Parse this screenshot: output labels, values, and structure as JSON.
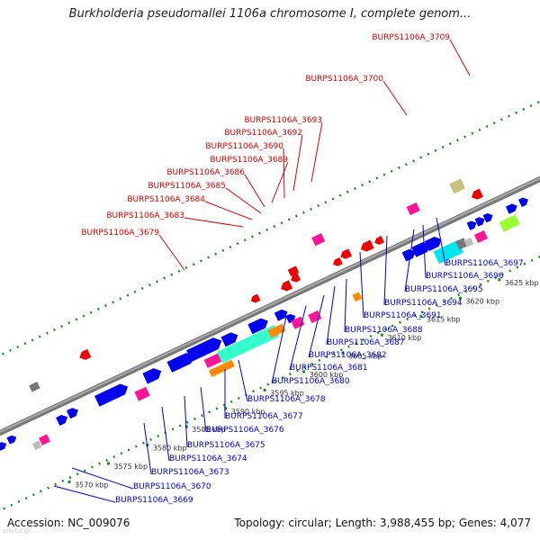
{
  "header": {
    "title": "Burkholderia pseudomallei 1106a chromosome I, complete genom..."
  },
  "footer": {
    "accession": "Accession: NC_009076",
    "summary": "Topology: circular; Length: 3,988,455 bp; Genes: 4,077",
    "watermark": "plot.cgi"
  },
  "colors": {
    "forward": "#0000ee",
    "reverse": "#ee0000",
    "magenta": "#ff1493",
    "aquamarine": "#33ffcc",
    "orange": "#ff8800",
    "cyan": "#00e5ee",
    "khaki": "#c8bf80",
    "gray": "#777777",
    "lime": "#99ff33",
    "label_reverse": "#dd0000",
    "label_forward": "#0000cc",
    "ticks": "#1a8c1a"
  },
  "scale": {
    "tick_labels": [
      "3570 kbp",
      "3575 kbp",
      "3580 kbp",
      "3585 kbp",
      "3590 kbp",
      "3595 kbp",
      "3600 kbp",
      "3605 kbp",
      "3610 kbp",
      "3615 kbp",
      "3620 kbp",
      "3625 kbp"
    ]
  },
  "labels_top": [
    "BURPS1106A_3709",
    "BURPS1106A_3700",
    "BURPS1106A_3693",
    "BURPS1106A_3692",
    "BURPS1106A_3690",
    "BURPS1106A_3689",
    "BURPS1106A_3686",
    "BURPS1106A_3685",
    "BURPS1106A_3684",
    "BURPS1106A_3683",
    "BURPS1106A_3679"
  ],
  "labels_bottom": [
    "BURPS1106A_3697",
    "BURPS1106A_3696",
    "BURPS1106A_3695",
    "BURPS1106A_3694",
    "BURPS1106A_3691",
    "BURPS1106A_3688",
    "BURPS1106A_3687",
    "BURPS1106A_3682",
    "BURPS1106A_3681",
    "BURPS1106A_3680",
    "BURPS1106A_3678",
    "BURPS1106A_3677",
    "BURPS1106A_3676",
    "BURPS1106A_3675",
    "BURPS1106A_3674",
    "BURPS1106A_3673",
    "BURPS1106A_3670",
    "BURPS1106A_3669"
  ]
}
